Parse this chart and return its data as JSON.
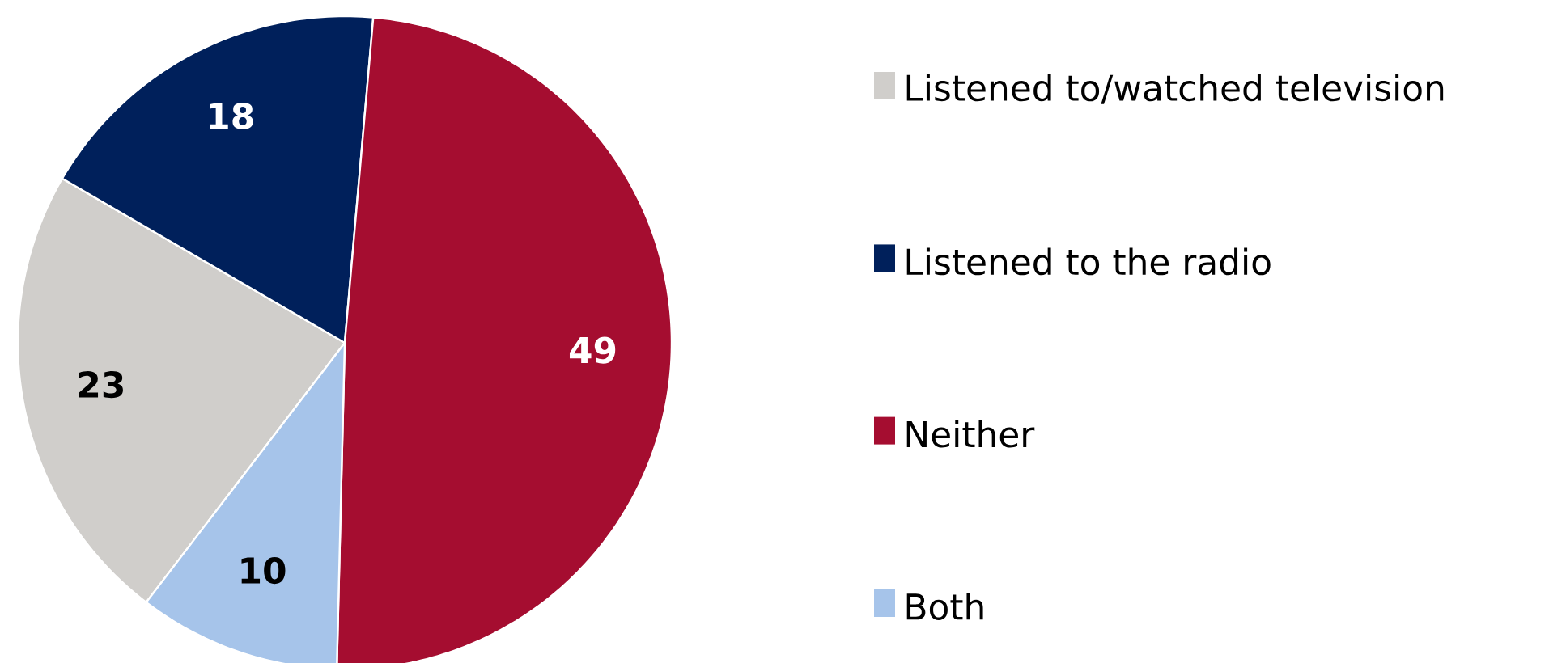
{
  "chart_data": {
    "type": "pie",
    "categories": [
      "Listened to/watched television",
      "Listened to the radio",
      "Neither",
      "Both"
    ],
    "values": [
      23,
      18,
      49,
      10
    ],
    "colors": [
      "#d0cecb",
      "#00205b",
      "#a50d30",
      "#a6c4ea"
    ],
    "data_labels": true,
    "legend": "right"
  }
}
